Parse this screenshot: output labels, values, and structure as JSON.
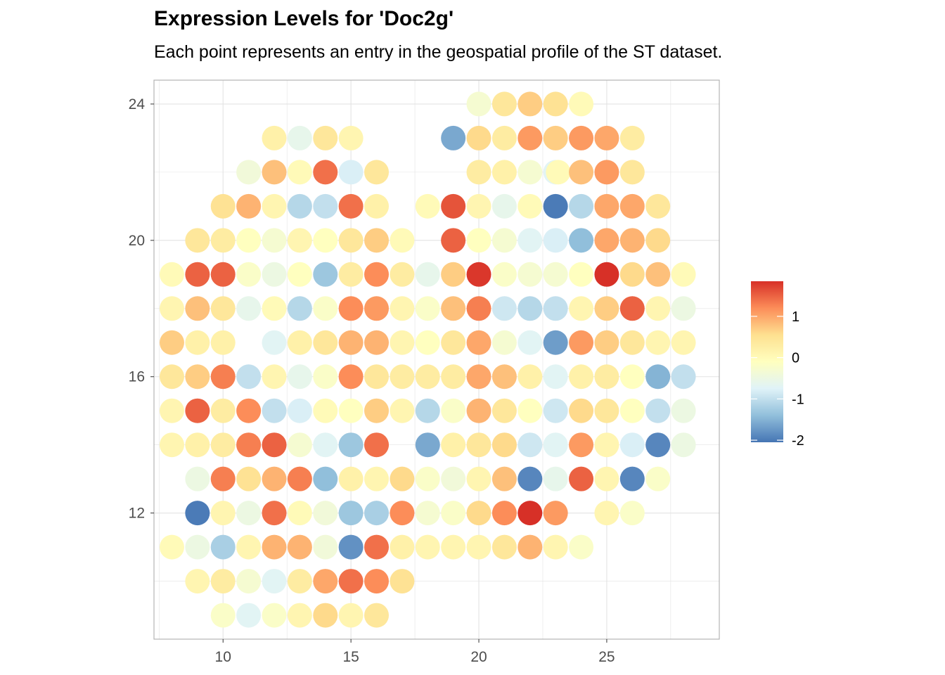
{
  "title": "Expression Levels for 'Doc2g'",
  "subtitle": "Each point represents an entry in the geospatial profile of the ST dataset.",
  "chart_data": {
    "type": "scatter",
    "title": "Expression Levels for 'Doc2g'",
    "subtitle": "Each point represents an entry in the geospatial profile of the ST dataset.",
    "xlabel": "",
    "ylabel": "",
    "xlim": [
      7.3,
      29.4
    ],
    "ylim": [
      8.3,
      24.7
    ],
    "x_ticks": [
      10,
      15,
      20,
      25
    ],
    "y_ticks": [
      12,
      16,
      20,
      24
    ],
    "grid": true,
    "legend": {
      "position": "right",
      "title": "",
      "ticks": [
        1,
        0,
        -1,
        -2
      ],
      "min": -2.05,
      "max": 1.85
    },
    "colorscale": [
      "#4575b4",
      "#91bfdb",
      "#e0f3f8",
      "#ffffbf",
      "#fee090",
      "#fc8d59",
      "#d73027"
    ],
    "points": [
      [
        20,
        24,
        -0.3
      ],
      [
        21,
        24,
        0.4
      ],
      [
        22,
        24,
        0.7
      ],
      [
        23,
        24,
        0.5
      ],
      [
        24,
        24,
        0
      ],
      [
        12,
        23,
        0.2
      ],
      [
        13,
        23,
        -0.6
      ],
      [
        14,
        23,
        0.4
      ],
      [
        15,
        23,
        0.1
      ],
      [
        19,
        23,
        -1.6
      ],
      [
        20,
        23,
        0.6
      ],
      [
        21,
        23,
        0.3
      ],
      [
        22,
        23,
        1.1
      ],
      [
        23,
        23,
        0.7
      ],
      [
        24,
        23,
        1.1
      ],
      [
        25,
        23,
        1.0
      ],
      [
        26,
        23,
        0.3
      ],
      [
        11,
        22,
        -0.4
      ],
      [
        12,
        22,
        0.8
      ],
      [
        13,
        22,
        0
      ],
      [
        14,
        22,
        1.4
      ],
      [
        15,
        22,
        -0.8
      ],
      [
        16,
        22,
        0.4
      ],
      [
        20,
        22,
        0.3
      ],
      [
        21,
        22,
        0.2
      ],
      [
        22,
        22,
        -0.3
      ],
      [
        23,
        22,
        -0.7
      ],
      [
        23.1,
        22,
        0
      ],
      [
        24,
        22,
        0.8
      ],
      [
        25,
        22,
        1.1
      ],
      [
        26,
        22,
        0.4
      ],
      [
        10,
        21,
        0.5
      ],
      [
        11,
        21,
        0.9
      ],
      [
        12,
        21,
        0.1
      ],
      [
        13,
        21,
        -1.1
      ],
      [
        14,
        21,
        -1.0
      ],
      [
        15,
        21,
        1.4
      ],
      [
        16,
        21,
        0.2
      ],
      [
        18,
        21,
        0
      ],
      [
        19,
        21,
        1.6
      ],
      [
        20,
        21,
        0.1
      ],
      [
        21,
        21,
        -0.6
      ],
      [
        22,
        21,
        0
      ],
      [
        23,
        21,
        -2.0
      ],
      [
        24,
        21,
        -1.1
      ],
      [
        25,
        21,
        1.0
      ],
      [
        26,
        21,
        1.0
      ],
      [
        27,
        21,
        0.4
      ],
      [
        9,
        20,
        0.4
      ],
      [
        10,
        20,
        0.3
      ],
      [
        11,
        20,
        -0.1
      ],
      [
        12,
        20,
        -0.3
      ],
      [
        13,
        20,
        0.1
      ],
      [
        14,
        20,
        -0.1
      ],
      [
        15,
        20,
        0.4
      ],
      [
        16,
        20,
        0.7
      ],
      [
        17,
        20,
        0
      ],
      [
        19,
        20,
        1.5
      ],
      [
        20,
        20,
        -0.1
      ],
      [
        21,
        20,
        -0.3
      ],
      [
        22,
        20,
        -0.7
      ],
      [
        23,
        20,
        -0.8
      ],
      [
        24,
        20,
        -1.4
      ],
      [
        25,
        20,
        1.0
      ],
      [
        26,
        20,
        0.9
      ],
      [
        27,
        20,
        0.6
      ],
      [
        8,
        19,
        0
      ],
      [
        9,
        19,
        1.5
      ],
      [
        10,
        19,
        1.5
      ],
      [
        11,
        19,
        -0.2
      ],
      [
        12,
        19,
        -0.5
      ],
      [
        13,
        19,
        -0.1
      ],
      [
        14,
        19,
        -1.3
      ],
      [
        15,
        19,
        0.3
      ],
      [
        16,
        19,
        1.2
      ],
      [
        17,
        19,
        0.3
      ],
      [
        18,
        19,
        -0.6
      ],
      [
        19,
        19,
        0.7
      ],
      [
        20,
        19,
        1.8
      ],
      [
        21,
        19,
        -0.2
      ],
      [
        22,
        19,
        -0.3
      ],
      [
        23,
        19,
        -0.3
      ],
      [
        24,
        19,
        -0.1
      ],
      [
        25,
        19,
        1.9
      ],
      [
        26,
        19,
        0.6
      ],
      [
        27,
        19,
        0.8
      ],
      [
        28,
        19,
        0
      ],
      [
        8,
        18,
        0.1
      ],
      [
        9,
        18,
        0.8
      ],
      [
        10,
        18,
        0.4
      ],
      [
        11,
        18,
        -0.6
      ],
      [
        12,
        18,
        0
      ],
      [
        13,
        18,
        -1.1
      ],
      [
        14,
        18,
        -0.2
      ],
      [
        15,
        18,
        1.2
      ],
      [
        16,
        18,
        1.1
      ],
      [
        17,
        18,
        0.1
      ],
      [
        18,
        18,
        -0.2
      ],
      [
        19,
        18,
        0.8
      ],
      [
        20,
        18,
        1.3
      ],
      [
        21,
        18,
        -0.9
      ],
      [
        22,
        18,
        -1.1
      ],
      [
        23,
        18,
        -1.0
      ],
      [
        24,
        18,
        0.1
      ],
      [
        25,
        18,
        0.7
      ],
      [
        26,
        18,
        1.5
      ],
      [
        27,
        18,
        0.1
      ],
      [
        28,
        18,
        -0.5
      ],
      [
        8,
        17,
        0.7
      ],
      [
        9,
        17,
        0.2
      ],
      [
        10,
        17,
        0.2
      ],
      [
        12,
        17,
        -0.7
      ],
      [
        13,
        17,
        0.2
      ],
      [
        14,
        17,
        0.4
      ],
      [
        15,
        17,
        0.9
      ],
      [
        16,
        17,
        0.9
      ],
      [
        17,
        17,
        0.1
      ],
      [
        18,
        17,
        -0.1
      ],
      [
        19,
        17,
        0.4
      ],
      [
        20,
        17,
        1.0
      ],
      [
        21,
        17,
        -0.3
      ],
      [
        22,
        17,
        -0.7
      ],
      [
        23,
        17,
        -1.7
      ],
      [
        24,
        17,
        1.1
      ],
      [
        25,
        17,
        0.7
      ],
      [
        26,
        17,
        0.4
      ],
      [
        27,
        17,
        0.1
      ],
      [
        28,
        17,
        0.1
      ],
      [
        8,
        16,
        0.4
      ],
      [
        9,
        16,
        0.7
      ],
      [
        10,
        16,
        1.3
      ],
      [
        11,
        16,
        -1.0
      ],
      [
        12,
        16,
        0.1
      ],
      [
        13,
        16,
        -0.6
      ],
      [
        14,
        16,
        -0.2
      ],
      [
        15,
        16,
        1.2
      ],
      [
        16,
        16,
        0.4
      ],
      [
        17,
        16,
        0.3
      ],
      [
        18,
        16,
        0.3
      ],
      [
        19,
        16,
        0.3
      ],
      [
        20,
        16,
        1.0
      ],
      [
        21,
        16,
        0.8
      ],
      [
        22,
        16,
        0.2
      ],
      [
        23,
        16,
        -0.7
      ],
      [
        24,
        16,
        0.2
      ],
      [
        25,
        16,
        0.3
      ],
      [
        26,
        16,
        -0.1
      ],
      [
        27,
        16,
        -1.5
      ],
      [
        28,
        16,
        -1.0
      ],
      [
        8,
        15,
        0.1
      ],
      [
        9,
        15,
        1.5
      ],
      [
        10,
        15,
        0.3
      ],
      [
        11,
        15,
        1.2
      ],
      [
        12,
        15,
        -1.0
      ],
      [
        13,
        15,
        -0.8
      ],
      [
        14,
        15,
        0
      ],
      [
        15,
        15,
        -0.1
      ],
      [
        16,
        15,
        0.7
      ],
      [
        17,
        15,
        0.1
      ],
      [
        18,
        15,
        -1.1
      ],
      [
        19,
        15,
        -0.2
      ],
      [
        20,
        15,
        0.9
      ],
      [
        21,
        15,
        0.4
      ],
      [
        22,
        15,
        -0.1
      ],
      [
        23,
        15,
        -0.9
      ],
      [
        24,
        15,
        0.6
      ],
      [
        25,
        15,
        0.4
      ],
      [
        26,
        15,
        -0.1
      ],
      [
        27,
        15,
        -1.0
      ],
      [
        28,
        15,
        -0.5
      ],
      [
        8,
        14,
        0.1
      ],
      [
        9,
        14,
        0.2
      ],
      [
        10,
        14,
        0.3
      ],
      [
        11,
        14,
        1.3
      ],
      [
        12,
        14,
        1.5
      ],
      [
        13,
        14,
        -0.3
      ],
      [
        14,
        14,
        -0.7
      ],
      [
        15,
        14,
        -1.3
      ],
      [
        16,
        14,
        1.4
      ],
      [
        18,
        14,
        -1.6
      ],
      [
        19,
        14,
        0.2
      ],
      [
        20,
        14,
        0.4
      ],
      [
        21,
        14,
        0.6
      ],
      [
        22,
        14,
        -0.9
      ],
      [
        23,
        14,
        -0.7
      ],
      [
        24,
        14,
        1.1
      ],
      [
        25,
        14,
        0.1
      ],
      [
        26,
        14,
        -0.8
      ],
      [
        27,
        14,
        -1.9
      ],
      [
        28,
        14,
        -0.5
      ],
      [
        9,
        13,
        -0.5
      ],
      [
        10,
        13,
        1.3
      ],
      [
        11,
        13,
        0.5
      ],
      [
        12,
        13,
        0.9
      ],
      [
        13,
        13,
        1.3
      ],
      [
        14,
        13,
        -1.4
      ],
      [
        15,
        13,
        0.2
      ],
      [
        16,
        13,
        0.1
      ],
      [
        17,
        13,
        0.6
      ],
      [
        18,
        13,
        -0.2
      ],
      [
        19,
        13,
        -0.4
      ],
      [
        20,
        13,
        0.1
      ],
      [
        21,
        13,
        0.8
      ],
      [
        22,
        13,
        -1.9
      ],
      [
        23,
        13,
        -0.6
      ],
      [
        24,
        13,
        1.5
      ],
      [
        25,
        13,
        0.1
      ],
      [
        26,
        13,
        -1.9
      ],
      [
        27,
        13,
        -0.2
      ],
      [
        9,
        12,
        -2.0
      ],
      [
        10,
        12,
        0.1
      ],
      [
        11,
        12,
        -0.5
      ],
      [
        12,
        12,
        1.4
      ],
      [
        13,
        12,
        0
      ],
      [
        14,
        12,
        -0.4
      ],
      [
        15,
        12,
        -1.3
      ],
      [
        16,
        12,
        -1.2
      ],
      [
        17,
        12,
        1.2
      ],
      [
        18,
        12,
        -0.3
      ],
      [
        19,
        12,
        -0.2
      ],
      [
        20,
        12,
        0.6
      ],
      [
        21,
        12,
        1.2
      ],
      [
        22,
        12,
        1.9
      ],
      [
        23,
        12,
        1.1
      ],
      [
        25,
        12,
        0.1
      ],
      [
        26,
        12,
        -0.2
      ],
      [
        8,
        11,
        0
      ],
      [
        9,
        11,
        -0.5
      ],
      [
        10,
        11,
        -1.2
      ],
      [
        11,
        11,
        0.1
      ],
      [
        12,
        11,
        0.9
      ],
      [
        13,
        11,
        0.9
      ],
      [
        14,
        11,
        -0.4
      ],
      [
        15,
        11,
        -1.8
      ],
      [
        16,
        11,
        1.4
      ],
      [
        17,
        11,
        0.2
      ],
      [
        18,
        11,
        0.1
      ],
      [
        19,
        11,
        0.1
      ],
      [
        20,
        11,
        0.1
      ],
      [
        21,
        11,
        0.4
      ],
      [
        22,
        11,
        0.9
      ],
      [
        23,
        11,
        0.1
      ],
      [
        24,
        11,
        -0.2
      ],
      [
        9,
        10,
        0.1
      ],
      [
        10,
        10,
        0.3
      ],
      [
        11,
        10,
        -0.3
      ],
      [
        12,
        10,
        -0.7
      ],
      [
        13,
        10,
        0.3
      ],
      [
        14,
        10,
        1.0
      ],
      [
        15,
        10,
        1.4
      ],
      [
        16,
        10,
        1.2
      ],
      [
        17,
        10,
        0.5
      ],
      [
        10,
        9,
        -0.2
      ],
      [
        11,
        9,
        -0.7
      ],
      [
        12,
        9,
        -0.2
      ],
      [
        13,
        9,
        0.1
      ],
      [
        14,
        9,
        0.6
      ],
      [
        15,
        9,
        0.1
      ],
      [
        16,
        9,
        0.4
      ]
    ]
  }
}
